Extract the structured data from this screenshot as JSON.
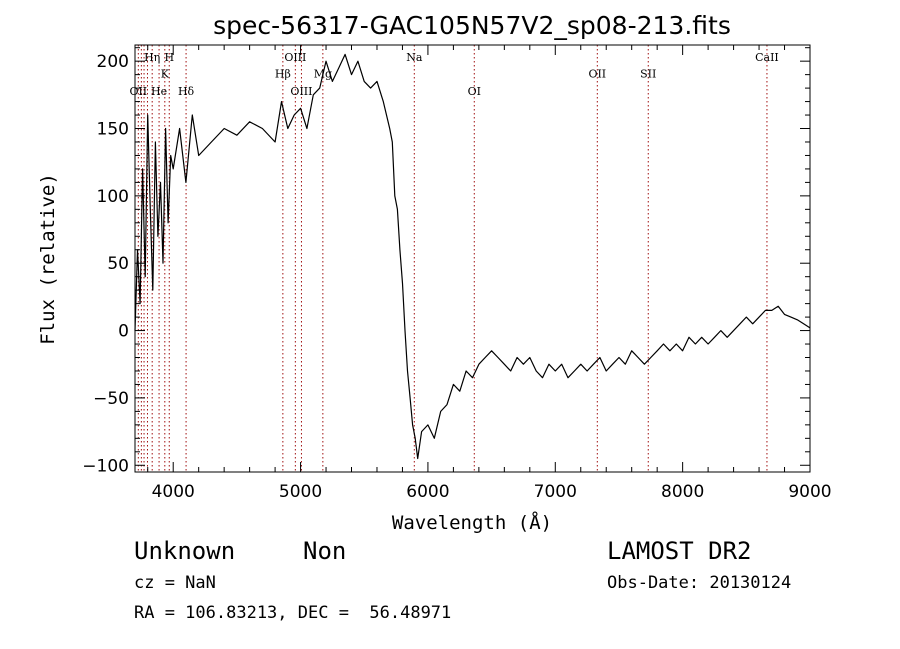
{
  "chart_data": {
    "type": "line",
    "title": "spec-56317-GAC105N57V2_sp08-213.fits",
    "xlabel": "Wavelength (Å)",
    "ylabel": "Flux (relative)",
    "xlim": [
      3700,
      9000
    ],
    "ylim": [
      -105,
      212
    ],
    "xticks": [
      4000,
      5000,
      6000,
      7000,
      8000,
      9000
    ],
    "yticks": [
      -100,
      -50,
      0,
      50,
      100,
      150,
      200
    ],
    "ytick_labels": [
      "−100",
      "−50",
      "0",
      "50",
      "100",
      "150",
      "200"
    ],
    "grid": false,
    "series": [
      {
        "color": "#000000",
        "x": [
          3700,
          3720,
          3740,
          3760,
          3780,
          3800,
          3820,
          3840,
          3860,
          3880,
          3900,
          3920,
          3940,
          3960,
          3980,
          4000,
          4050,
          4100,
          4150,
          4200,
          4300,
          4400,
          4500,
          4600,
          4700,
          4800,
          4850,
          4900,
          4950,
          5000,
          5050,
          5100,
          5150,
          5200,
          5250,
          5300,
          5350,
          5400,
          5450,
          5500,
          5550,
          5600,
          5650,
          5700,
          5720,
          5740,
          5760,
          5780,
          5800,
          5820,
          5840,
          5860,
          5880,
          5900,
          5920,
          5950,
          6000,
          6050,
          6100,
          6150,
          6200,
          6250,
          6300,
          6350,
          6400,
          6450,
          6500,
          6550,
          6600,
          6650,
          6700,
          6750,
          6800,
          6850,
          6900,
          6950,
          7000,
          7050,
          7100,
          7150,
          7200,
          7250,
          7300,
          7350,
          7400,
          7450,
          7500,
          7550,
          7600,
          7650,
          7700,
          7750,
          7800,
          7850,
          7900,
          7950,
          8000,
          8050,
          8100,
          8150,
          8200,
          8250,
          8300,
          8350,
          8400,
          8450,
          8500,
          8550,
          8600,
          8650,
          8700,
          8750,
          8800,
          8850,
          8900,
          8950,
          9000
        ],
        "y": [
          0,
          60,
          20,
          120,
          40,
          160,
          90,
          30,
          140,
          70,
          110,
          50,
          150,
          80,
          130,
          120,
          150,
          110,
          160,
          130,
          140,
          150,
          145,
          155,
          150,
          140,
          170,
          150,
          160,
          165,
          150,
          175,
          180,
          200,
          185,
          195,
          205,
          190,
          200,
          185,
          180,
          185,
          170,
          150,
          140,
          100,
          90,
          60,
          35,
          0,
          -30,
          -50,
          -70,
          -80,
          -95,
          -75,
          -70,
          -80,
          -60,
          -55,
          -40,
          -45,
          -30,
          -35,
          -25,
          -20,
          -15,
          -20,
          -25,
          -30,
          -20,
          -25,
          -20,
          -30,
          -35,
          -25,
          -30,
          -25,
          -35,
          -30,
          -25,
          -30,
          -25,
          -20,
          -30,
          -25,
          -20,
          -25,
          -15,
          -20,
          -25,
          -20,
          -15,
          -10,
          -15,
          -10,
          -15,
          -5,
          -10,
          -5,
          -10,
          -5,
          0,
          -5,
          0,
          5,
          10,
          5,
          10,
          15,
          15,
          18,
          12,
          10,
          8,
          5,
          2
        ]
      }
    ],
    "lines": [
      {
        "x": 3726,
        "label": "OII",
        "label_y": 175
      },
      {
        "x": 3750,
        "label": "",
        "label_y": null
      },
      {
        "x": 3771,
        "label": "",
        "label_y": null
      },
      {
        "x": 3798,
        "label": "",
        "label_y": null
      },
      {
        "x": 3835,
        "label": "Hη",
        "label_y": 200
      },
      {
        "x": 3889,
        "label": "He",
        "label_y": 175
      },
      {
        "x": 3934,
        "label": "K",
        "label_y": 188
      },
      {
        "x": 3969,
        "label": "H",
        "label_y": 200
      },
      {
        "x": 4101,
        "label": "Hδ",
        "label_y": 175
      },
      {
        "x": 4861,
        "label": "Hβ",
        "label_y": 188
      },
      {
        "x": 4959,
        "label": "OIII",
        "label_y": 200
      },
      {
        "x": 5007,
        "label": "OIII",
        "label_y": 175
      },
      {
        "x": 5175,
        "label": "Mg",
        "label_y": 188
      },
      {
        "x": 5893,
        "label": "Na",
        "label_y": 200
      },
      {
        "x": 6364,
        "label": "OI",
        "label_y": 175
      },
      {
        "x": 7330,
        "label": "OII",
        "label_y": 188
      },
      {
        "x": 7730,
        "label": "SII",
        "label_y": 188
      },
      {
        "x": 8662,
        "label": "CaII",
        "label_y": 200
      }
    ]
  },
  "info": {
    "class": "Unknown",
    "subclass": "Non",
    "survey": "LAMOST DR2",
    "cz": "cz = NaN",
    "obs_date": "Obs-Date: 20130124",
    "coords": "RA = 106.83213, DEC =  56.48971"
  }
}
